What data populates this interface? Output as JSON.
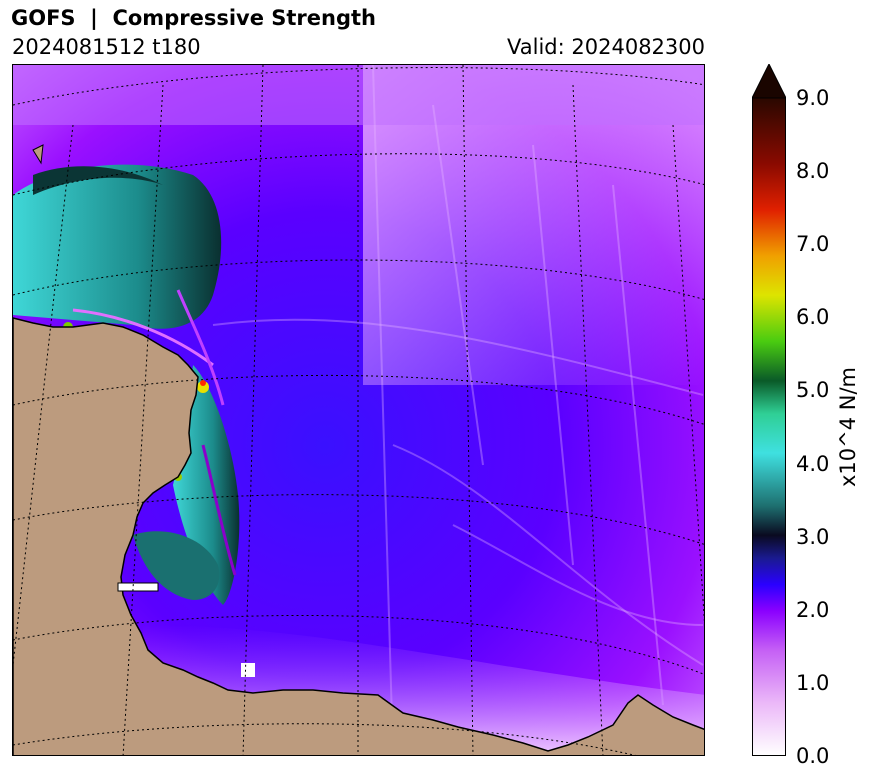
{
  "header": {
    "title": "GOFS  |  Compressive Strength",
    "run": "2024081512 t180",
    "valid": "Valid: 2024082300"
  },
  "colorbar": {
    "label": "x10^4 N/m",
    "ticks": [
      "0.0",
      "1.0",
      "2.0",
      "3.0",
      "4.0",
      "5.0",
      "6.0",
      "7.0",
      "8.0",
      "9.0"
    ],
    "range": [
      0,
      9
    ],
    "extend": "max"
  },
  "colors": {
    "land": "#BC9B7E",
    "low_ice": "#D9A0F5",
    "mid_ice": "#8A00FF",
    "blue_ice": "#3A00FF",
    "teal_ice": "#2FB7B7",
    "coast": "#000000"
  }
}
